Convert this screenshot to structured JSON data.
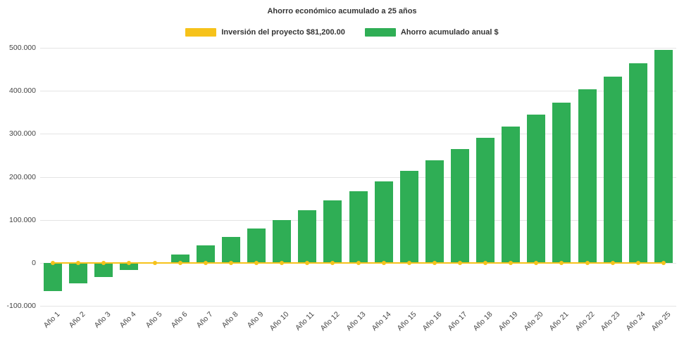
{
  "chart_data": {
    "type": "bar",
    "title": "Ahorro económico acumulado a 25 años",
    "xlabel": "",
    "ylabel": "",
    "ylim": [
      -100000,
      500000
    ],
    "grid": true,
    "legend_position": "top",
    "yticks": [
      {
        "value": 500000,
        "label": "500.000"
      },
      {
        "value": 400000,
        "label": "400.000"
      },
      {
        "value": 300000,
        "label": "300.000"
      },
      {
        "value": 200000,
        "label": "200.000"
      },
      {
        "value": 100000,
        "label": "100.000"
      },
      {
        "value": 0,
        "label": "0"
      },
      {
        "value": -100000,
        "label": "-100.000"
      }
    ],
    "categories": [
      "Año 1",
      "Año 2",
      "Año 3",
      "Año 4",
      "Año 5",
      "Año 6",
      "Año 7",
      "Año 8",
      "Año 9",
      "Año 10",
      "Año 11",
      "Año 12",
      "Año 13",
      "Año 14",
      "Año 15",
      "Año 16",
      "Año 17",
      "Año 18",
      "Año 19",
      "Año 20",
      "Año 21",
      "Año 22",
      "Año 23",
      "Año 24",
      "Año 25"
    ],
    "series": [
      {
        "name": "Inversión del proyecto $81,200.00",
        "type": "line",
        "color": "#f6c21a",
        "values": [
          0,
          0,
          0,
          0,
          0,
          0,
          0,
          0,
          0,
          0,
          0,
          0,
          0,
          0,
          0,
          0,
          0,
          0,
          0,
          0,
          0,
          0,
          0,
          0,
          0
        ]
      },
      {
        "name": "Ahorro acumulado anual $",
        "type": "bar",
        "color": "#2fae55",
        "values": [
          -65000,
          -48000,
          -33000,
          -16000,
          2000,
          20000,
          40000,
          60000,
          80000,
          100000,
          122000,
          145000,
          167000,
          190000,
          214000,
          239000,
          265000,
          291000,
          317000,
          345000,
          373000,
          403000,
          433000,
          464000,
          495000
        ]
      }
    ]
  }
}
